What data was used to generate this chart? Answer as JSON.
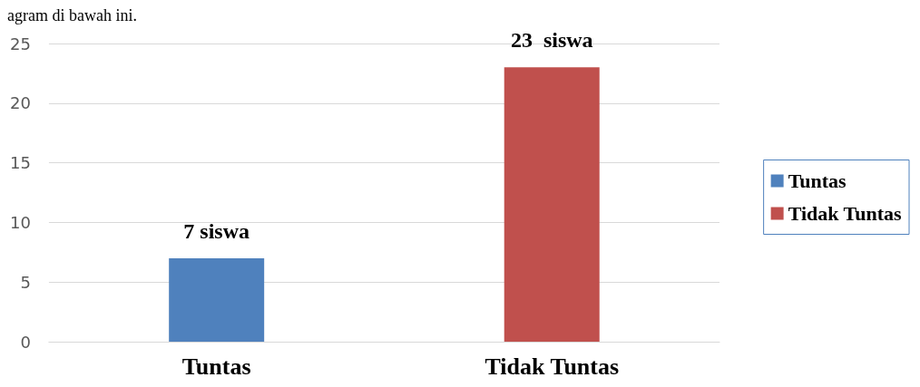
{
  "chart_data": {
    "type": "bar",
    "annotations": [
      "agram di bawah ini."
    ],
    "categories": [
      "Tuntas",
      "Tidak Tuntas"
    ],
    "series": [
      {
        "name": "Tuntas",
        "color": "#4f81bd",
        "values": [
          7,
          null
        ],
        "value_labels": [
          "7 siswa",
          null
        ]
      },
      {
        "name": "Tidak Tuntas",
        "color": "#c0504d",
        "values": [
          null,
          23
        ],
        "value_labels": [
          null,
          "23  siswa"
        ]
      }
    ],
    "ylim": [
      0,
      25
    ],
    "yticks": [
      0,
      5,
      10,
      15,
      20,
      25
    ],
    "grid": "y",
    "legend": "right"
  }
}
